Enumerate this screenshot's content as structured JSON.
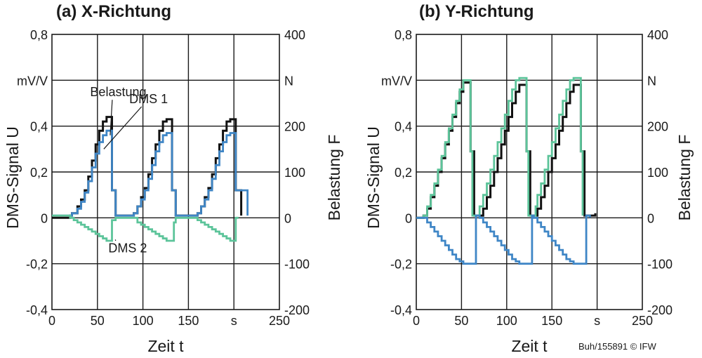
{
  "credit": "Buh/155891 © IFW",
  "colors": {
    "load": "#111111",
    "dms1": "#3f86c6",
    "dms2": "#5cc49a"
  },
  "chart_data": [
    {
      "type": "line",
      "title": "(a) X-Richtung",
      "xlabel": "Zeit t",
      "ylabel": "DMS-Signal U",
      "y2label": "Belastung F",
      "x_ticks": [
        "0",
        "50",
        "100",
        "150",
        "s",
        "250"
      ],
      "xlim": [
        0,
        250
      ],
      "y_ticks": [
        "0,8",
        "mV/V",
        "0,4",
        "0,2",
        "0",
        "-0,2",
        "-0,4"
      ],
      "ylim": [
        -0.4,
        0.8
      ],
      "y2_ticks": [
        "400",
        "N",
        "200",
        "100",
        "0",
        "-100",
        "-200"
      ],
      "y2lim": [
        -200,
        400
      ],
      "grid": true,
      "annotations": [
        {
          "text": "Belastung",
          "x": 42,
          "y": 0.53,
          "target": [
            64,
            0.36
          ]
        },
        {
          "text": "DMS 1",
          "x": 85,
          "y": 0.5,
          "target": [
            57,
            0.3
          ]
        },
        {
          "text": "DMS 2",
          "x": 62,
          "y": -0.15,
          "target": [
            70,
            -0.1
          ]
        }
      ],
      "series": [
        {
          "name": "Belastung",
          "color": "#111111",
          "x": [
            0,
            20,
            22,
            28,
            32,
            36,
            40,
            44,
            48,
            52,
            56,
            60,
            64,
            66,
            70,
            82,
            90,
            94,
            98,
            102,
            106,
            110,
            114,
            118,
            122,
            126,
            130,
            132,
            136,
            155,
            160,
            164,
            168,
            172,
            176,
            180,
            184,
            188,
            192,
            196,
            200,
            202,
            208
          ],
          "y": [
            0,
            0.01,
            0.02,
            0.05,
            0.08,
            0.12,
            0.18,
            0.25,
            0.32,
            0.38,
            0.42,
            0.44,
            0.44,
            0.12,
            0.01,
            0.01,
            0.02,
            0.05,
            0.09,
            0.13,
            0.19,
            0.26,
            0.32,
            0.38,
            0.42,
            0.43,
            0.43,
            0.12,
            0.01,
            0.01,
            0.02,
            0.05,
            0.09,
            0.13,
            0.19,
            0.26,
            0.32,
            0.38,
            0.42,
            0.43,
            0.43,
            0.12,
            0.01
          ]
        },
        {
          "name": "DMS 1",
          "color": "#3f86c6",
          "x": [
            0,
            20,
            22,
            28,
            32,
            36,
            40,
            44,
            48,
            52,
            56,
            60,
            64,
            66,
            70,
            82,
            90,
            94,
            98,
            102,
            106,
            110,
            114,
            118,
            122,
            126,
            130,
            132,
            136,
            155,
            160,
            164,
            168,
            172,
            176,
            180,
            184,
            188,
            192,
            196,
            200,
            202,
            215
          ],
          "y": [
            0.01,
            0.01,
            0.02,
            0.04,
            0.07,
            0.11,
            0.16,
            0.22,
            0.28,
            0.33,
            0.36,
            0.38,
            0.38,
            0.12,
            0.01,
            0.01,
            0.02,
            0.05,
            0.08,
            0.12,
            0.17,
            0.23,
            0.29,
            0.33,
            0.36,
            0.37,
            0.37,
            0.12,
            0.01,
            0.01,
            0.02,
            0.05,
            0.08,
            0.12,
            0.17,
            0.23,
            0.29,
            0.33,
            0.36,
            0.37,
            0.37,
            0.12,
            0.01
          ]
        },
        {
          "name": "DMS 2",
          "color": "#5cc49a",
          "x": [
            0,
            20,
            24,
            28,
            32,
            36,
            40,
            44,
            48,
            52,
            56,
            60,
            64,
            66,
            70,
            82,
            94,
            98,
            102,
            106,
            110,
            114,
            118,
            122,
            126,
            130,
            134,
            136,
            155,
            160,
            164,
            168,
            172,
            176,
            180,
            184,
            188,
            192,
            196,
            200,
            202,
            205
          ],
          "y": [
            0.01,
            0,
            -0.01,
            -0.02,
            -0.03,
            -0.04,
            -0.05,
            -0.06,
            -0.07,
            -0.08,
            -0.09,
            -0.1,
            -0.1,
            -0.01,
            0,
            0,
            -0.02,
            -0.03,
            -0.04,
            -0.05,
            -0.06,
            -0.07,
            -0.08,
            -0.09,
            -0.1,
            -0.1,
            -0.02,
            0,
            0,
            -0.01,
            -0.02,
            -0.03,
            -0.04,
            -0.05,
            -0.06,
            -0.07,
            -0.08,
            -0.09,
            -0.1,
            -0.1,
            0,
            0
          ]
        }
      ]
    },
    {
      "type": "line",
      "title": "(b) Y-Richtung",
      "xlabel": "Zeit t",
      "ylabel": "DMS-Signal U",
      "y2label": "Belastung F",
      "x_ticks": [
        "0",
        "50",
        "100",
        "150",
        "s",
        "250"
      ],
      "xlim": [
        0,
        250
      ],
      "y_ticks": [
        "0,8",
        "mV/V",
        "0,4",
        "0,2",
        "0",
        "-0,2",
        "-0,4"
      ],
      "ylim": [
        -0.4,
        0.8
      ],
      "y2_ticks": [
        "400",
        "N",
        "200",
        "100",
        "0",
        "-100",
        "-200"
      ],
      "y2lim": [
        -200,
        400
      ],
      "grid": true,
      "annotations": [],
      "series": [
        {
          "name": "Belastung",
          "color": "#111111",
          "x": [
            0,
            8,
            12,
            16,
            20,
            24,
            28,
            32,
            36,
            40,
            44,
            48,
            52,
            56,
            60,
            64,
            66,
            70,
            74,
            78,
            82,
            86,
            90,
            94,
            98,
            102,
            106,
            110,
            114,
            118,
            122,
            126,
            128,
            132,
            134,
            138,
            142,
            146,
            150,
            154,
            158,
            162,
            166,
            170,
            174,
            178,
            182,
            186,
            188,
            192,
            198
          ],
          "y": [
            0,
            0.01,
            0.04,
            0.09,
            0.14,
            0.2,
            0.26,
            0.32,
            0.38,
            0.44,
            0.5,
            0.55,
            0.59,
            0.59,
            0.29,
            0.01,
            0.01,
            0.01,
            0.04,
            0.09,
            0.14,
            0.2,
            0.26,
            0.32,
            0.38,
            0.44,
            0.5,
            0.55,
            0.58,
            0.58,
            0.29,
            0.01,
            0.01,
            0.01,
            0.04,
            0.09,
            0.14,
            0.2,
            0.26,
            0.32,
            0.38,
            0.44,
            0.5,
            0.55,
            0.58,
            0.58,
            0.29,
            0.01,
            0.01,
            0.01,
            0.02
          ]
        },
        {
          "name": "",
          "color": "#5cc49a",
          "x": [
            0,
            8,
            12,
            16,
            20,
            24,
            28,
            32,
            36,
            40,
            44,
            48,
            52,
            56,
            60,
            62,
            66,
            70,
            74,
            78,
            82,
            86,
            90,
            94,
            98,
            102,
            106,
            110,
            114,
            118,
            122,
            124,
            128,
            132,
            134,
            138,
            142,
            146,
            150,
            154,
            158,
            162,
            166,
            170,
            174,
            178,
            182,
            184
          ],
          "y": [
            0,
            0.01,
            0.05,
            0.1,
            0.15,
            0.21,
            0.27,
            0.33,
            0.39,
            0.45,
            0.51,
            0.56,
            0.6,
            0.6,
            0.29,
            0.01,
            0.01,
            0.05,
            0.1,
            0.15,
            0.21,
            0.27,
            0.33,
            0.39,
            0.45,
            0.51,
            0.56,
            0.6,
            0.61,
            0.61,
            0.29,
            0.01,
            0.01,
            0.05,
            0.1,
            0.15,
            0.21,
            0.27,
            0.33,
            0.39,
            0.45,
            0.51,
            0.56,
            0.6,
            0.61,
            0.61,
            0.29,
            0.01
          ]
        },
        {
          "name": "",
          "color": "#3f86c6",
          "x": [
            0,
            8,
            12,
            16,
            20,
            24,
            28,
            32,
            36,
            40,
            44,
            48,
            52,
            56,
            60,
            64,
            66,
            70,
            74,
            78,
            82,
            86,
            90,
            94,
            98,
            102,
            106,
            110,
            114,
            118,
            122,
            126,
            128,
            130,
            134,
            138,
            142,
            146,
            150,
            154,
            158,
            162,
            166,
            170,
            174,
            178,
            182,
            186,
            188,
            192
          ],
          "y": [
            0,
            0,
            -0.02,
            -0.04,
            -0.06,
            -0.08,
            -0.1,
            -0.12,
            -0.14,
            -0.16,
            -0.18,
            -0.19,
            -0.2,
            -0.2,
            -0.2,
            -0.2,
            0.01,
            0,
            -0.02,
            -0.04,
            -0.06,
            -0.08,
            -0.1,
            -0.12,
            -0.14,
            -0.16,
            -0.18,
            -0.19,
            -0.2,
            -0.2,
            -0.2,
            -0.2,
            0.01,
            0,
            -0.02,
            -0.04,
            -0.06,
            -0.08,
            -0.1,
            -0.12,
            -0.14,
            -0.16,
            -0.18,
            -0.19,
            -0.2,
            -0.2,
            -0.2,
            -0.2,
            0.01,
            0
          ]
        }
      ]
    }
  ]
}
